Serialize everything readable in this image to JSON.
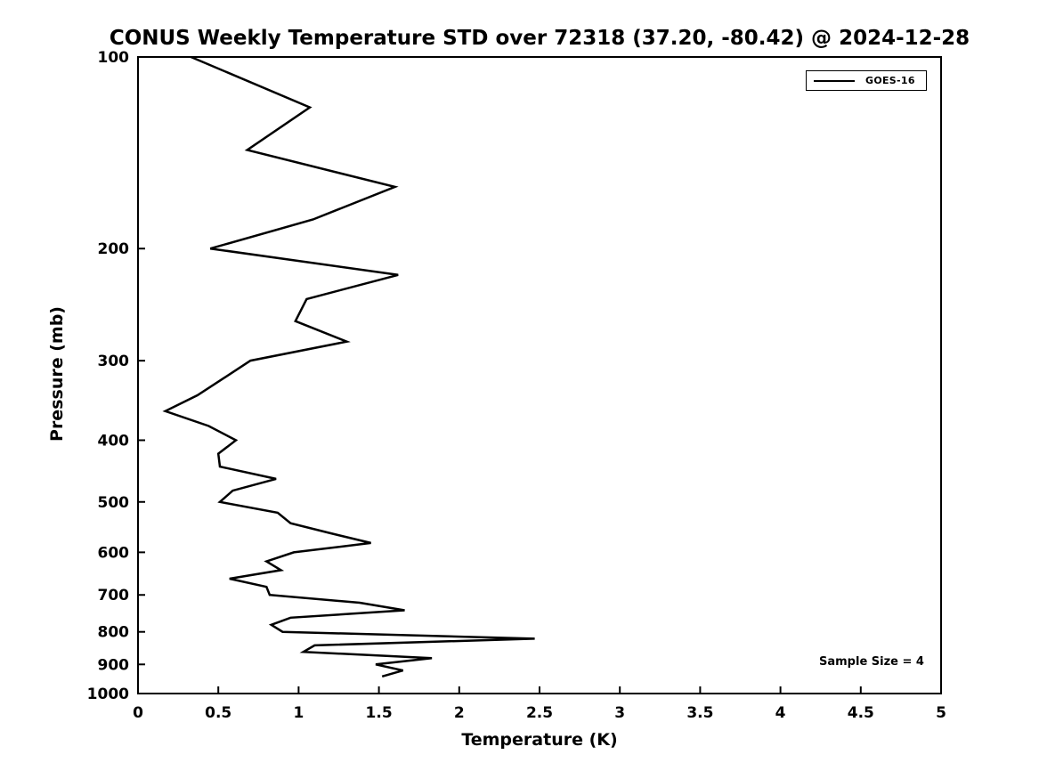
{
  "chart_data": {
    "type": "line",
    "title": "CONUS Weekly Temperature STD over 72318 (37.20, -80.42) @ 2024-12-28",
    "xlabel": "Temperature (K)",
    "ylabel": "Pressure (mb)",
    "xlim": [
      0,
      5
    ],
    "ylim": [
      100,
      1000
    ],
    "y_scale": "log",
    "y_direction": "reversed",
    "grid": false,
    "x_ticks": [
      0,
      0.5,
      1,
      1.5,
      2,
      2.5,
      3,
      3.5,
      4,
      4.5,
      5
    ],
    "y_ticks": [
      100,
      200,
      300,
      400,
      500,
      600,
      700,
      800,
      900,
      1000
    ],
    "legend_position": "top-right",
    "series": [
      {
        "name": "GOES-16",
        "color": "#000000",
        "pressure_mb": [
          100,
          120,
          140,
          160,
          180,
          200,
          220,
          240,
          260,
          280,
          300,
          320,
          340,
          360,
          380,
          400,
          420,
          440,
          460,
          480,
          500,
          520,
          540,
          560,
          580,
          600,
          620,
          640,
          660,
          680,
          700,
          720,
          740,
          760,
          780,
          800,
          820,
          840,
          860,
          880,
          900,
          920,
          940
        ],
        "temperature_std_K": [
          0.33,
          1.07,
          0.68,
          1.6,
          1.09,
          0.45,
          1.62,
          1.05,
          0.98,
          1.3,
          0.7,
          0.53,
          0.37,
          0.17,
          0.44,
          0.61,
          0.5,
          0.51,
          0.86,
          0.59,
          0.51,
          0.87,
          0.95,
          1.2,
          1.45,
          0.97,
          0.8,
          0.89,
          0.57,
          0.8,
          0.82,
          1.38,
          1.66,
          0.95,
          0.83,
          0.9,
          2.47,
          1.1,
          1.03,
          1.83,
          1.48,
          1.65,
          1.52
        ]
      }
    ],
    "annotations": [
      {
        "text": "Sample Size = 4",
        "anchor": "bottom-right-inside",
        "y_mb": 900
      }
    ]
  }
}
